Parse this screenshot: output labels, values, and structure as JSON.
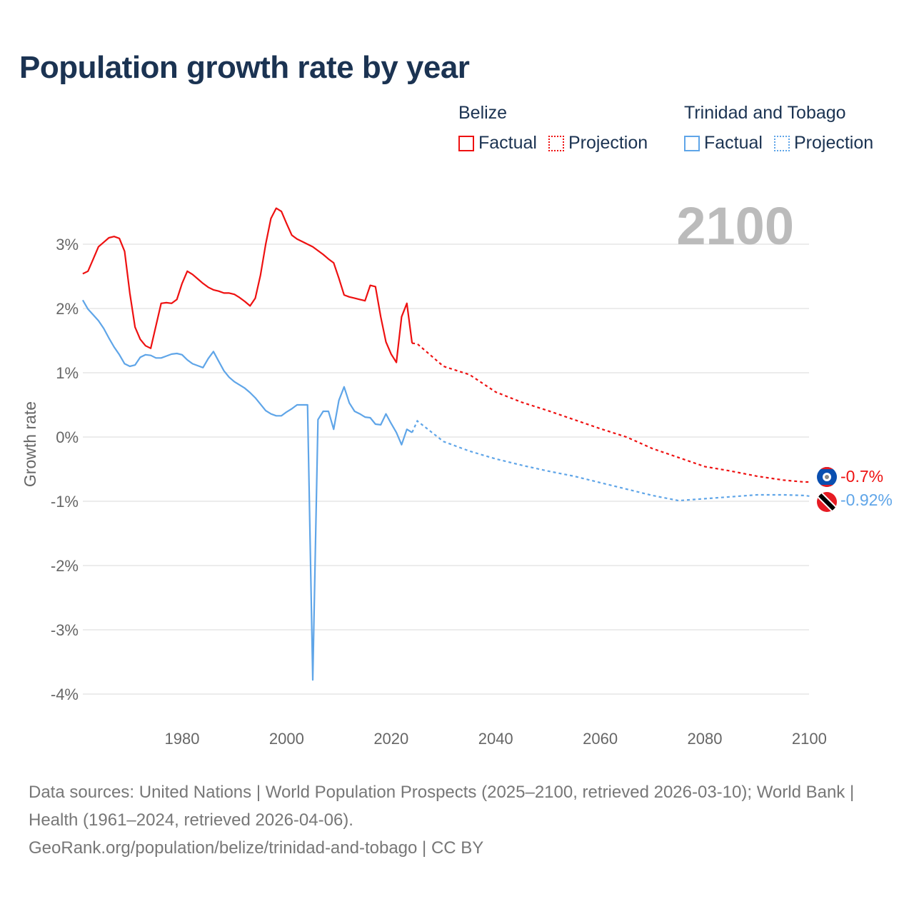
{
  "title": "Population growth rate by year",
  "legend": {
    "groups": [
      {
        "name": "Belize",
        "factual": "Factual",
        "projection": "Projection",
        "color": "#ee1111"
      },
      {
        "name": "Trinidad and Tobago",
        "factual": "Factual",
        "projection": "Projection",
        "color": "#5fa5e8"
      }
    ]
  },
  "year_label": "2100",
  "footer": {
    "sources": "Data sources: United Nations | World Population Prospects (2025–2100, retrieved 2026-03-10); World Bank | Health (1961–2024, retrieved 2026-04-06).",
    "credit": "GeoRank.org/population/belize/trinidad-and-tobago | CC BY"
  },
  "chart_data": {
    "type": "line",
    "title": "Population growth rate by year",
    "ylabel": "Growth rate",
    "xlabel": "",
    "xlim": [
      1961,
      2100
    ],
    "ylim": [
      -4.1,
      3.9
    ],
    "xticks": [
      1980,
      2000,
      2020,
      2040,
      2060,
      2080,
      2100
    ],
    "yticks": [
      3,
      2,
      1,
      0,
      -1,
      -2,
      -3,
      -4
    ],
    "ytick_labels": [
      "3%",
      "2%",
      "1%",
      "0%",
      "-1%",
      "-2%",
      "-3%",
      "-4%"
    ],
    "xtick_labels": [
      "1980",
      "2000",
      "2020",
      "2040",
      "2060",
      "2080",
      "2100"
    ],
    "grid": true,
    "legend_position": "top-right",
    "series": [
      {
        "name": "Belize",
        "color": "#ee1111",
        "end_label": "-0.7%",
        "factual": {
          "x": [
            1961,
            1962,
            1963,
            1964,
            1965,
            1966,
            1967,
            1968,
            1969,
            1970,
            1971,
            1972,
            1973,
            1974,
            1975,
            1976,
            1977,
            1978,
            1979,
            1980,
            1981,
            1982,
            1983,
            1984,
            1985,
            1986,
            1987,
            1988,
            1989,
            1990,
            1991,
            1992,
            1993,
            1994,
            1995,
            1996,
            1997,
            1998,
            1999,
            2000,
            2001,
            2002,
            2003,
            2004,
            2005,
            2006,
            2007,
            2008,
            2009,
            2010,
            2011,
            2012,
            2013,
            2014,
            2015,
            2016,
            2017,
            2018,
            2019,
            2020,
            2021,
            2022,
            2023,
            2024
          ],
          "y": [
            2.54,
            2.58,
            2.77,
            2.96,
            3.03,
            3.1,
            3.12,
            3.09,
            2.89,
            2.24,
            1.71,
            1.52,
            1.42,
            1.38,
            1.73,
            2.08,
            2.09,
            2.08,
            2.14,
            2.39,
            2.58,
            2.53,
            2.46,
            2.39,
            2.33,
            2.29,
            2.27,
            2.24,
            2.24,
            2.22,
            2.17,
            2.11,
            2.04,
            2.16,
            2.52,
            3.0,
            3.4,
            3.56,
            3.51,
            3.32,
            3.14,
            3.08,
            3.04,
            3.0,
            2.96,
            2.9,
            2.84,
            2.77,
            2.71,
            2.47,
            2.21,
            2.18,
            2.16,
            2.14,
            2.12,
            2.36,
            2.34,
            1.87,
            1.48,
            1.29,
            1.16,
            1.87,
            2.08,
            1.46
          ]
        },
        "projection": {
          "x": [
            2024,
            2025,
            2030,
            2035,
            2040,
            2045,
            2050,
            2055,
            2060,
            2065,
            2070,
            2075,
            2080,
            2085,
            2090,
            2095,
            2099,
            2100
          ],
          "y": [
            1.46,
            1.45,
            1.1,
            0.97,
            0.7,
            0.54,
            0.41,
            0.27,
            0.13,
            0.0,
            -0.18,
            -0.32,
            -0.46,
            -0.53,
            -0.61,
            -0.67,
            -0.7,
            -0.7
          ]
        }
      },
      {
        "name": "Trinidad and Tobago",
        "color": "#5fa5e8",
        "end_label": "-0.92%",
        "factual": {
          "x": [
            1961,
            1962,
            1963,
            1964,
            1965,
            1966,
            1967,
            1968,
            1969,
            1970,
            1971,
            1972,
            1973,
            1974,
            1975,
            1976,
            1977,
            1978,
            1979,
            1980,
            1981,
            1982,
            1983,
            1984,
            1985,
            1986,
            1987,
            1988,
            1989,
            1990,
            1991,
            1992,
            1993,
            1994,
            1995,
            1996,
            1997,
            1998,
            1999,
            2000,
            2001,
            2002,
            2003,
            2004,
            2005,
            2006,
            2007,
            2008,
            2009,
            2010,
            2011,
            2012,
            2013,
            2014,
            2015,
            2016,
            2017,
            2018,
            2019,
            2020,
            2021,
            2022,
            2023,
            2024
          ],
          "y": [
            2.13,
            1.99,
            1.9,
            1.81,
            1.69,
            1.54,
            1.4,
            1.28,
            1.14,
            1.1,
            1.12,
            1.24,
            1.28,
            1.27,
            1.23,
            1.23,
            1.26,
            1.29,
            1.3,
            1.28,
            1.2,
            1.14,
            1.11,
            1.08,
            1.22,
            1.33,
            1.18,
            1.03,
            0.93,
            0.86,
            0.81,
            0.76,
            0.69,
            0.61,
            0.51,
            0.41,
            0.36,
            0.33,
            0.33,
            0.39,
            0.44,
            0.5,
            0.5,
            0.5,
            -3.78,
            0.27,
            0.4,
            0.4,
            0.12,
            0.57,
            0.78,
            0.53,
            0.4,
            0.36,
            0.31,
            0.3,
            0.2,
            0.19,
            0.36,
            0.21,
            0.07,
            -0.12,
            0.12,
            0.07
          ]
        },
        "projection": {
          "x": [
            2024,
            2025,
            2030,
            2035,
            2040,
            2045,
            2050,
            2055,
            2060,
            2065,
            2070,
            2075,
            2080,
            2085,
            2090,
            2095,
            2099,
            2100
          ],
          "y": [
            0.07,
            0.25,
            -0.07,
            -0.22,
            -0.34,
            -0.44,
            -0.53,
            -0.61,
            -0.71,
            -0.81,
            -0.91,
            -0.99,
            -0.96,
            -0.93,
            -0.9,
            -0.9,
            -0.91,
            -0.92
          ]
        }
      }
    ]
  }
}
